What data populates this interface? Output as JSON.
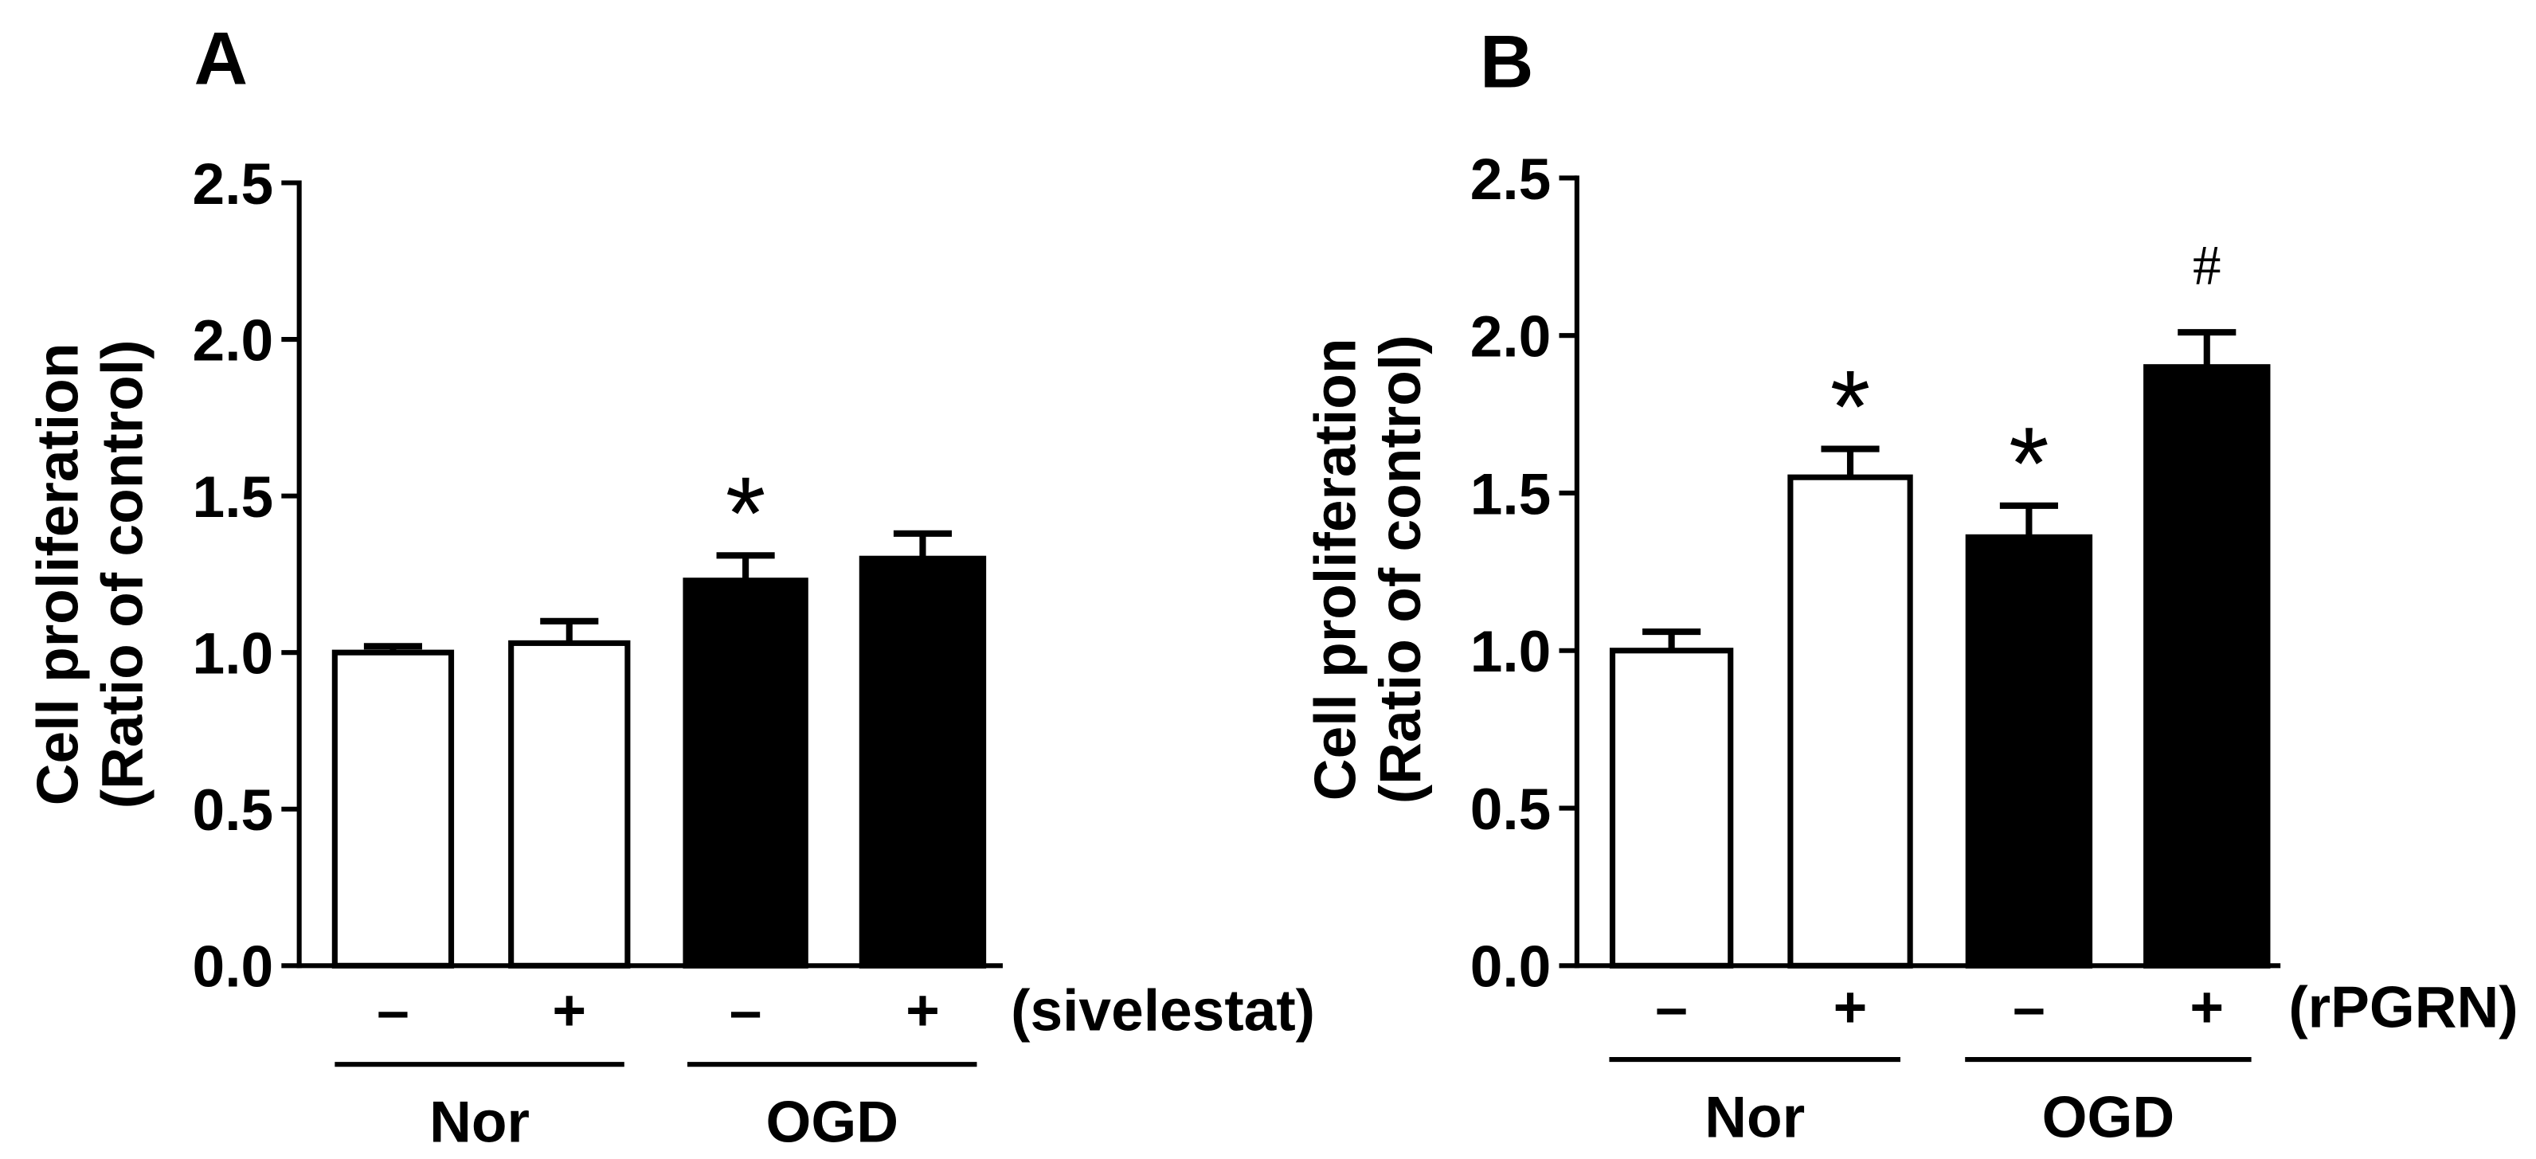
{
  "chart_data": [
    {
      "type": "bar",
      "panel_label": "A",
      "ylabel": [
        "Cell proliferation",
        "(Ratio of control)"
      ],
      "ylim": [
        0,
        2.5
      ],
      "yticks": [
        "0.0",
        "0.5",
        "1.0",
        "1.5",
        "2.0",
        "2.5"
      ],
      "categories": [
        "–",
        "+",
        "–",
        "+"
      ],
      "treatment_label": "(sivelestat)",
      "groups": [
        {
          "name": "Nor",
          "bars": [
            0,
            1
          ]
        },
        {
          "name": "OGD",
          "bars": [
            2,
            3
          ]
        }
      ],
      "values": [
        1.0,
        1.03,
        1.23,
        1.3
      ],
      "errors": [
        0.02,
        0.07,
        0.08,
        0.08
      ],
      "fills": [
        "#ffffff",
        "#ffffff",
        "#000000",
        "#000000"
      ],
      "annotations": [
        null,
        null,
        "*",
        null
      ]
    },
    {
      "type": "bar",
      "panel_label": "B",
      "ylabel": [
        "Cell proliferation",
        "(Ratio of control)"
      ],
      "ylim": [
        0,
        2.5
      ],
      "yticks": [
        "0.0",
        "0.5",
        "1.0",
        "1.5",
        "2.0",
        "2.5"
      ],
      "categories": [
        "–",
        "+",
        "–",
        "+"
      ],
      "treatment_label": "(rPGRN)",
      "groups": [
        {
          "name": "Nor",
          "bars": [
            0,
            1
          ]
        },
        {
          "name": "OGD",
          "bars": [
            2,
            3
          ]
        }
      ],
      "values": [
        1.0,
        1.55,
        1.36,
        1.9
      ],
      "errors": [
        0.06,
        0.09,
        0.1,
        0.11
      ],
      "fills": [
        "#ffffff",
        "#ffffff",
        "#000000",
        "#000000"
      ],
      "annotations": [
        null,
        "*",
        "*",
        "#"
      ]
    }
  ]
}
